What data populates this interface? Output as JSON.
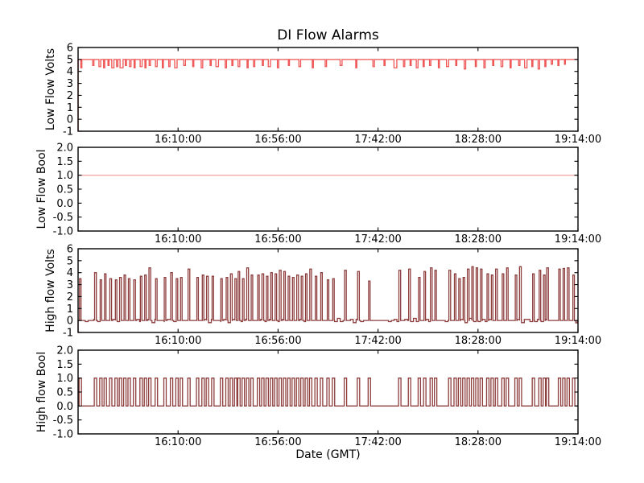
{
  "figure": {
    "title": "DI Flow Alarms",
    "xlabel": "Date (GMT)",
    "background": "#ffffff",
    "frame_color": "#000000",
    "text_color": "#000000"
  },
  "x_axis": {
    "range_minutes": [
      0,
      230
    ],
    "tick_minutes": [
      46,
      92,
      138,
      184,
      230
    ],
    "tick_labels": [
      "16:10:00",
      "16:56:00",
      "17:42:00",
      "18:28:00",
      "19:14:00"
    ]
  },
  "chart_data": [
    {
      "type": "line",
      "name": "low-flow-volts",
      "ylabel": "Low Flow Volts",
      "color": "#ef5454",
      "ylim": [
        -1,
        6
      ],
      "yticks": [
        -1,
        0,
        1,
        2,
        3,
        4,
        5,
        6
      ],
      "ytick_labels": [
        "-1",
        "0",
        "1",
        "2",
        "3",
        "4",
        "5",
        "6"
      ],
      "baseline": 5.0,
      "start_value": -1.0,
      "pulses": [
        [
          1.5,
          4.3,
          0.5
        ],
        [
          7,
          4.5,
          0.6
        ],
        [
          10,
          4.4,
          0.8
        ],
        [
          12,
          4.3,
          0.5
        ],
        [
          14,
          4.5,
          0.5
        ],
        [
          16,
          4.3,
          1.0
        ],
        [
          18,
          4.4,
          0.6
        ],
        [
          20,
          4.3,
          1.4
        ],
        [
          22,
          4.5,
          0.5
        ],
        [
          24,
          4.4,
          0.7
        ],
        [
          26,
          4.3,
          0.5
        ],
        [
          29,
          4.4,
          0.9
        ],
        [
          31,
          4.3,
          0.5
        ],
        [
          33,
          4.5,
          0.6
        ],
        [
          36,
          4.4,
          0.8
        ],
        [
          39,
          4.3,
          0.5
        ],
        [
          42,
          4.4,
          0.6
        ],
        [
          45,
          4.3,
          1.1
        ],
        [
          49,
          4.5,
          0.8
        ],
        [
          53,
          4.4,
          0.5
        ],
        [
          57,
          4.3,
          0.7
        ],
        [
          61,
          4.5,
          0.5
        ],
        [
          64,
          4.4,
          1.2
        ],
        [
          68,
          4.3,
          0.6
        ],
        [
          71,
          4.5,
          0.5
        ],
        [
          74,
          4.4,
          0.8
        ],
        [
          78,
          4.3,
          0.5
        ],
        [
          81,
          4.4,
          0.6
        ],
        [
          85,
          4.5,
          0.5
        ],
        [
          88,
          4.4,
          1.0
        ],
        [
          92,
          4.3,
          0.6
        ],
        [
          97,
          4.5,
          0.5
        ],
        [
          102,
          4.4,
          0.8
        ],
        [
          108,
          4.3,
          0.5
        ],
        [
          114,
          4.4,
          0.6
        ],
        [
          121,
          4.5,
          0.9
        ],
        [
          128,
          4.3,
          0.5
        ],
        [
          136,
          4.4,
          0.7
        ],
        [
          141,
          4.5,
          0.5
        ],
        [
          146,
          4.3,
          1.3
        ],
        [
          150,
          4.4,
          0.6
        ],
        [
          153,
          4.5,
          0.5
        ],
        [
          156,
          4.3,
          0.8
        ],
        [
          159,
          4.4,
          0.5
        ],
        [
          162,
          4.5,
          0.6
        ],
        [
          166,
          4.3,
          0.5
        ],
        [
          170,
          4.4,
          1.0
        ],
        [
          174,
          4.5,
          0.5
        ],
        [
          178,
          4.2,
          0.7
        ],
        [
          183,
          4.4,
          0.5
        ],
        [
          187,
          4.3,
          0.6
        ],
        [
          191,
          4.5,
          0.5
        ],
        [
          195,
          4.4,
          0.8
        ],
        [
          199,
          4.3,
          0.5
        ],
        [
          203,
          4.5,
          0.6
        ],
        [
          206,
          4.3,
          1.1
        ],
        [
          209,
          4.4,
          0.5
        ],
        [
          212,
          4.2,
          0.7
        ],
        [
          215,
          4.4,
          0.5
        ],
        [
          218,
          4.6,
          0.6
        ],
        [
          221,
          4.5,
          0.5
        ],
        [
          224,
          4.6,
          0.4
        ]
      ]
    },
    {
      "type": "line",
      "name": "low-flow-bool",
      "ylabel": "Low Flow Bool",
      "color": "#f4a9a9",
      "ylim": [
        -1,
        2
      ],
      "yticks": [
        -1,
        -0.5,
        0,
        0.5,
        1,
        1.5,
        2
      ],
      "ytick_labels": [
        "-1.0",
        "-0.5",
        "0.0",
        "0.5",
        "1.0",
        "1.5",
        "2.0"
      ],
      "baseline": 1.0,
      "pulses": []
    },
    {
      "type": "line",
      "name": "high-flow-volts",
      "ylabel": "High flow Volts",
      "color": "#8e3d3d",
      "ylim": [
        -1,
        6
      ],
      "yticks": [
        -1,
        0,
        1,
        2,
        3,
        4,
        5,
        6
      ],
      "ytick_labels": [
        "-1",
        "0",
        "1",
        "2",
        "3",
        "4",
        "5",
        "6"
      ],
      "baseline": 0.0,
      "start_value": -1.0,
      "noise_amp": 0.09,
      "pulses": [
        [
          1,
          3.5,
          0.7
        ],
        [
          8,
          4.0,
          0.8
        ],
        [
          10.5,
          3.4,
          0.7
        ],
        [
          12.5,
          3.9,
          0.7
        ],
        [
          15,
          3.5,
          0.8
        ],
        [
          17.5,
          3.4,
          0.7
        ],
        [
          19.5,
          3.6,
          0.8
        ],
        [
          21.5,
          3.8,
          0.7
        ],
        [
          23.5,
          3.5,
          0.7
        ],
        [
          26,
          3.4,
          0.8
        ],
        [
          29,
          3.7,
          0.7
        ],
        [
          31,
          3.8,
          0.7
        ],
        [
          33,
          4.4,
          0.8
        ],
        [
          36,
          3.5,
          0.7
        ],
        [
          40,
          3.6,
          0.7
        ],
        [
          43,
          4.0,
          0.8
        ],
        [
          45.5,
          3.5,
          0.7
        ],
        [
          47.5,
          3.6,
          0.7
        ],
        [
          51,
          4.3,
          0.8
        ],
        [
          55,
          3.6,
          0.7
        ],
        [
          57.5,
          3.8,
          0.7
        ],
        [
          59.5,
          3.7,
          0.8
        ],
        [
          62,
          3.7,
          0.7
        ],
        [
          66,
          3.5,
          0.7
        ],
        [
          68.5,
          3.6,
          0.7
        ],
        [
          70.5,
          3.9,
          0.8
        ],
        [
          72.5,
          3.5,
          0.7
        ],
        [
          74,
          4.1,
          0.7
        ],
        [
          76,
          3.5,
          0.7
        ],
        [
          78,
          4.4,
          0.8
        ],
        [
          80,
          3.8,
          0.7
        ],
        [
          83,
          3.8,
          0.7
        ],
        [
          85,
          3.9,
          0.8
        ],
        [
          87,
          3.7,
          0.7
        ],
        [
          89,
          4.0,
          0.7
        ],
        [
          91,
          3.9,
          0.7
        ],
        [
          93,
          4.2,
          0.8
        ],
        [
          95,
          4.1,
          0.7
        ],
        [
          97,
          3.7,
          0.7
        ],
        [
          99,
          3.6,
          0.7
        ],
        [
          101,
          3.8,
          0.8
        ],
        [
          103,
          3.7,
          0.7
        ],
        [
          105,
          3.9,
          0.7
        ],
        [
          107,
          4.3,
          0.8
        ],
        [
          109.5,
          3.7,
          0.7
        ],
        [
          112,
          4.0,
          0.7
        ],
        [
          115,
          3.4,
          0.7
        ],
        [
          117.5,
          3.5,
          0.7
        ],
        [
          123,
          4.2,
          0.8
        ],
        [
          129,
          4.1,
          0.8
        ],
        [
          134,
          3.3,
          0.7
        ],
        [
          148,
          4.2,
          0.8
        ],
        [
          152.5,
          4.3,
          0.8
        ],
        [
          157,
          3.6,
          0.7
        ],
        [
          159.5,
          4.1,
          0.7
        ],
        [
          162.5,
          4.4,
          0.8
        ],
        [
          164.5,
          4.2,
          0.7
        ],
        [
          171,
          4.2,
          0.8
        ],
        [
          173.5,
          3.9,
          0.7
        ],
        [
          175.5,
          3.5,
          0.7
        ],
        [
          177.5,
          3.6,
          0.7
        ],
        [
          179.5,
          4.3,
          0.8
        ],
        [
          181.5,
          4.5,
          0.7
        ],
        [
          183.5,
          4.4,
          0.7
        ],
        [
          185.5,
          4.3,
          0.7
        ],
        [
          188.5,
          3.9,
          0.7
        ],
        [
          190.5,
          3.8,
          0.7
        ],
        [
          192.5,
          4.3,
          0.8
        ],
        [
          195.5,
          3.9,
          0.7
        ],
        [
          197.5,
          4.4,
          0.7
        ],
        [
          201.5,
          3.8,
          0.7
        ],
        [
          203.5,
          4.5,
          0.8
        ],
        [
          209.5,
          3.9,
          0.7
        ],
        [
          212.5,
          4.2,
          0.7
        ],
        [
          214.5,
          3.8,
          0.7
        ],
        [
          216,
          4.4,
          0.8
        ],
        [
          221.5,
          4.3,
          0.7
        ],
        [
          223.5,
          4.35,
          0.7
        ],
        [
          225.5,
          4.4,
          0.8
        ],
        [
          228,
          3.8,
          0.7
        ],
        [
          229.3,
          -0.2,
          0.7
        ]
      ]
    },
    {
      "type": "line",
      "name": "high-flow-bool",
      "ylabel": "High flow Bool",
      "color": "#8e3d3d",
      "ylim": [
        -1,
        2
      ],
      "yticks": [
        -1,
        -0.5,
        0,
        0.5,
        1,
        1.5,
        2
      ],
      "ytick_labels": [
        "-1.0",
        "-0.5",
        "0.0",
        "0.5",
        "1.0",
        "1.5",
        "2.0"
      ],
      "baseline": 0.0,
      "pulse_value": 1.0,
      "pulse_width": 1.1,
      "pulse_times": [
        1,
        8,
        10.5,
        12.5,
        15,
        17.5,
        19.5,
        21.5,
        23.5,
        26,
        29,
        31,
        33,
        36,
        40,
        43,
        45.5,
        47.5,
        51,
        55,
        57.5,
        59.5,
        62,
        66,
        68.5,
        70.5,
        72.5,
        74,
        76,
        78,
        80,
        83,
        85,
        87,
        89,
        91,
        93,
        95,
        97,
        99,
        101,
        103,
        105,
        107,
        109.5,
        112,
        115,
        117.5,
        123,
        129,
        134,
        148,
        152.5,
        157,
        159.5,
        162.5,
        164.5,
        171,
        173.5,
        175.5,
        177.5,
        179.5,
        181.5,
        183.5,
        185.5,
        188.5,
        190.5,
        192.5,
        195.5,
        197.5,
        201.5,
        203.5,
        209.5,
        212.5,
        214.5,
        216,
        221.5,
        223.5,
        225.5,
        228
      ]
    }
  ]
}
